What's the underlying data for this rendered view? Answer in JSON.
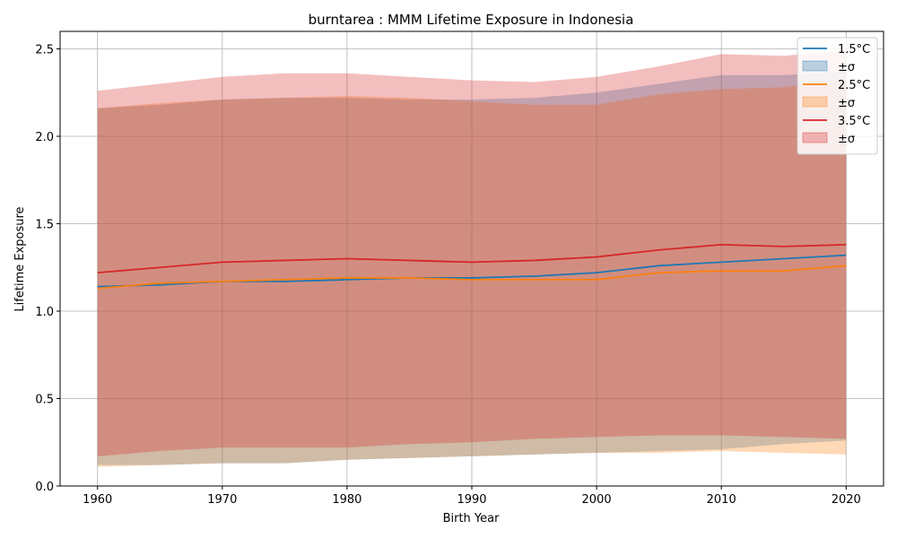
{
  "chart_data": {
    "type": "area",
    "title": "burntarea : MMM Lifetime Exposure in Indonesia",
    "xlabel": "Birth Year",
    "ylabel": "Lifetime Exposure",
    "xlim": [
      1957,
      2023
    ],
    "ylim": [
      0,
      2.6
    ],
    "xticks": [
      "1960",
      "1970",
      "1980",
      "1990",
      "2000",
      "2010",
      "2020"
    ],
    "yticks": [
      "0.0",
      "0.5",
      "1.0",
      "1.5",
      "2.0",
      "2.5"
    ],
    "grid": true,
    "legend_position": "top-right",
    "x": [
      1960,
      1965,
      1970,
      1975,
      1980,
      1985,
      1990,
      1995,
      2000,
      2005,
      2010,
      2015,
      2020
    ],
    "series": [
      {
        "name": "1.5°C",
        "band_label": "±σ",
        "color": "#1f77b4",
        "mean": [
          1.14,
          1.15,
          1.17,
          1.17,
          1.18,
          1.19,
          1.19,
          1.2,
          1.22,
          1.26,
          1.28,
          1.3,
          1.32
        ],
        "lower": [
          0.12,
          0.12,
          0.13,
          0.13,
          0.15,
          0.16,
          0.17,
          0.18,
          0.19,
          0.2,
          0.21,
          0.24,
          0.26
        ],
        "upper": [
          2.16,
          2.18,
          2.21,
          2.22,
          2.22,
          2.21,
          2.21,
          2.22,
          2.25,
          2.3,
          2.35,
          2.35,
          2.37
        ]
      },
      {
        "name": "2.5°C",
        "band_label": "±σ",
        "color": "#ff7f0e",
        "mean": [
          1.13,
          1.16,
          1.17,
          1.18,
          1.19,
          1.19,
          1.18,
          1.18,
          1.18,
          1.22,
          1.23,
          1.23,
          1.26
        ],
        "lower": [
          0.11,
          0.12,
          0.13,
          0.13,
          0.15,
          0.16,
          0.17,
          0.18,
          0.19,
          0.19,
          0.2,
          0.19,
          0.18
        ],
        "upper": [
          2.16,
          2.19,
          2.21,
          2.22,
          2.23,
          2.22,
          2.2,
          2.18,
          2.18,
          2.24,
          2.27,
          2.28,
          2.33
        ]
      },
      {
        "name": "3.5°C",
        "band_label": "±σ",
        "color": "#d62728",
        "mean": [
          1.22,
          1.25,
          1.28,
          1.29,
          1.3,
          1.29,
          1.28,
          1.29,
          1.31,
          1.35,
          1.38,
          1.37,
          1.38
        ],
        "lower": [
          0.17,
          0.2,
          0.22,
          0.22,
          0.22,
          0.24,
          0.25,
          0.27,
          0.28,
          0.29,
          0.29,
          0.28,
          0.27
        ],
        "upper": [
          2.26,
          2.3,
          2.34,
          2.36,
          2.36,
          2.34,
          2.32,
          2.31,
          2.34,
          2.4,
          2.47,
          2.46,
          2.49
        ]
      }
    ]
  }
}
